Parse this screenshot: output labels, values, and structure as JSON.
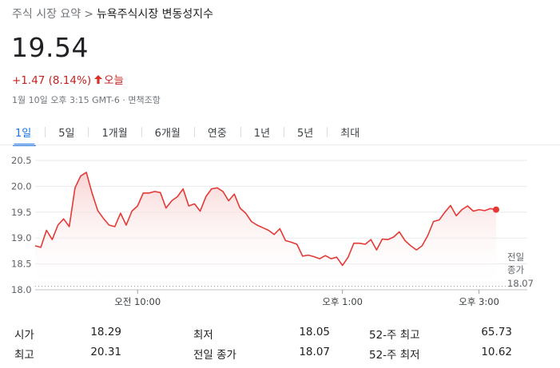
{
  "breadcrumb": {
    "root": "주식 시장 요약",
    "separator": ">",
    "current": "뉴욕주식시장 변동성지수"
  },
  "quote": {
    "price": "19.54",
    "change": "+1.47 (8.14%)",
    "change_direction": "up",
    "period": "오늘",
    "timestamp": "1월 10일 오후 3:15 GMT-6",
    "separator": "·",
    "disclaimer": "면책조항"
  },
  "colors": {
    "negative_or_up_red": "#d93025",
    "active_tab": "#1a73e8",
    "chart_line": "#e53935",
    "chart_fill_top": "#f8cfcf"
  },
  "tabs": [
    {
      "label": "1일",
      "active": true
    },
    {
      "label": "5일",
      "active": false
    },
    {
      "label": "1개월",
      "active": false
    },
    {
      "label": "6개월",
      "active": false
    },
    {
      "label": "연중",
      "active": false
    },
    {
      "label": "1년",
      "active": false
    },
    {
      "label": "5년",
      "active": false
    },
    {
      "label": "최대",
      "active": false
    }
  ],
  "chart_data": {
    "type": "area",
    "title": "",
    "xlabel": "",
    "ylabel": "",
    "ylim": [
      18.0,
      20.5
    ],
    "y_ticks": [
      "20.5",
      "20.0",
      "19.5",
      "19.0",
      "18.5",
      "18.0"
    ],
    "x_tick_labels": [
      "오전 10:00",
      "오후 1:00",
      "오후 3:00"
    ],
    "x_tick_times": [
      "10:00",
      "13:00",
      "15:00"
    ],
    "x_range": [
      "08:30",
      "15:15"
    ],
    "previous_close": {
      "label_line1": "전일",
      "label_line2": "종가",
      "value": "18.07"
    },
    "series": [
      {
        "x": [
          "08:30",
          "08:35",
          "08:40",
          "08:45",
          "08:50",
          "08:55",
          "09:00",
          "09:05",
          "09:10",
          "09:15",
          "09:20",
          "09:25",
          "09:30",
          "09:35",
          "09:40",
          "09:45",
          "09:50",
          "09:55",
          "10:00",
          "10:05",
          "10:10",
          "10:15",
          "10:20",
          "10:25",
          "10:30",
          "10:35",
          "10:40",
          "10:45",
          "10:50",
          "10:55",
          "11:00",
          "11:05",
          "11:10",
          "11:15",
          "11:20",
          "11:25",
          "11:30",
          "11:35",
          "11:40",
          "11:45",
          "11:50",
          "11:55",
          "12:00",
          "12:05",
          "12:10",
          "12:15",
          "12:20",
          "12:25",
          "12:30",
          "12:35",
          "12:40",
          "12:45",
          "12:50",
          "12:55",
          "13:00",
          "13:05",
          "13:10",
          "13:15",
          "13:20",
          "13:25",
          "13:30",
          "13:35",
          "13:40",
          "13:45",
          "13:50",
          "13:55",
          "14:00",
          "14:05",
          "14:10",
          "14:15",
          "14:20",
          "14:25",
          "14:30",
          "14:35",
          "14:40",
          "14:45",
          "14:50",
          "14:55",
          "15:00",
          "15:05",
          "15:10",
          "15:15"
        ],
        "y": [
          18.85,
          18.82,
          19.15,
          18.97,
          19.25,
          19.37,
          19.22,
          19.97,
          20.2,
          20.27,
          19.87,
          19.53,
          19.38,
          19.25,
          19.22,
          19.48,
          19.25,
          19.52,
          19.62,
          19.87,
          19.87,
          19.9,
          19.88,
          19.58,
          19.72,
          19.8,
          19.95,
          19.62,
          19.66,
          19.52,
          19.8,
          19.95,
          19.97,
          19.9,
          19.72,
          19.85,
          19.58,
          19.48,
          19.32,
          19.25,
          19.2,
          19.15,
          19.07,
          19.18,
          18.95,
          18.92,
          18.88,
          18.65,
          18.67,
          18.64,
          18.6,
          18.66,
          18.6,
          18.63,
          18.47,
          18.63,
          18.9,
          18.9,
          18.88,
          18.97,
          18.77,
          18.98,
          18.97,
          19.02,
          19.12,
          18.95,
          18.85,
          18.77,
          18.85,
          19.05,
          19.32,
          19.35,
          19.5,
          19.63,
          19.43,
          19.55,
          19.62,
          19.52,
          19.55,
          19.53,
          19.57,
          19.55
        ]
      }
    ]
  },
  "stats": {
    "col1": [
      {
        "label": "시가",
        "value": "18.29"
      },
      {
        "label": "최고",
        "value": "20.31"
      }
    ],
    "col2": [
      {
        "label": "최저",
        "value": "18.05"
      },
      {
        "label": "전일 종가",
        "value": "18.07"
      }
    ],
    "col3": [
      {
        "label": "52-주 최고",
        "value": "65.73"
      },
      {
        "label": "52-주 최저",
        "value": "10.62"
      }
    ]
  }
}
